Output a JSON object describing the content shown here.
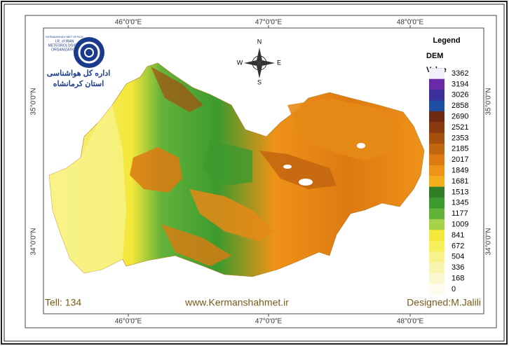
{
  "map": {
    "logo": {
      "line1": "KERMANSHAH MET OFFICE",
      "line2": "I.R. of IRAN",
      "line3": "METEOROLOGICAL",
      "line4": "ORGANIZATION",
      "fa1": "اداره کل هواشناسی",
      "fa2": "استان کرمانشاه"
    },
    "compass": {
      "n": "N",
      "e": "E",
      "s": "S",
      "w": "W"
    },
    "top_labels": [
      "46°0'0\"E",
      "47°0'0\"E",
      "48°0'0\"E"
    ],
    "bottom_labels": [
      "46°0'0\"E",
      "47°0'0\"E",
      "48°0'0\"E"
    ],
    "left_labels": [
      "35°0'0\"N",
      "34°0'0\"N"
    ],
    "right_labels": [
      "35°0'0\"N",
      "34°0'0\"N"
    ],
    "legend": {
      "title": "Legend",
      "layer": "DEM",
      "field": "Value",
      "items": [
        {
          "value": 3362,
          "color": "#f4f0fa"
        },
        {
          "value": 3194,
          "color": "#6a2aa8"
        },
        {
          "value": 3026,
          "color": "#3b2f9c"
        },
        {
          "value": 2858,
          "color": "#1f4fa3"
        },
        {
          "value": 2690,
          "color": "#6e2a12"
        },
        {
          "value": 2521,
          "color": "#8a3a10"
        },
        {
          "value": 2353,
          "color": "#a5500e"
        },
        {
          "value": 2185,
          "color": "#c2650f"
        },
        {
          "value": 2017,
          "color": "#dd7a12"
        },
        {
          "value": 1849,
          "color": "#ef9218"
        },
        {
          "value": 1681,
          "color": "#f3ae1f"
        },
        {
          "value": 1513,
          "color": "#2f7d27"
        },
        {
          "value": 1345,
          "color": "#3d9a2e"
        },
        {
          "value": 1177,
          "color": "#63b23a"
        },
        {
          "value": 1009,
          "color": "#a6d24a"
        },
        {
          "value": 841,
          "color": "#f4e83a"
        },
        {
          "value": 672,
          "color": "#f7ef5c"
        },
        {
          "value": 504,
          "color": "#f8f28a"
        },
        {
          "value": 336,
          "color": "#f9f5b0"
        },
        {
          "value": 168,
          "color": "#fbf8cf"
        },
        {
          "value": 0,
          "color": "#fdfcee"
        }
      ]
    },
    "footer": {
      "tell": "Tell: 134",
      "website": "www.Kermanshahmet.ir",
      "designer": "Designed:M.Jalili"
    }
  }
}
